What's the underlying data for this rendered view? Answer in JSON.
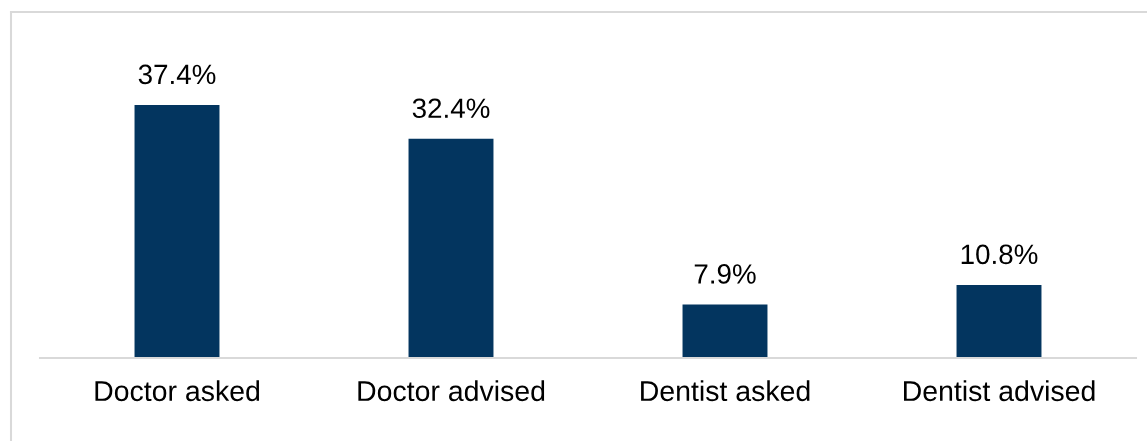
{
  "chart_data": {
    "type": "bar",
    "categories": [
      "Doctor asked",
      "Doctor advised",
      "Dentist asked",
      "Dentist advised"
    ],
    "values": [
      37.4,
      32.4,
      7.9,
      10.8
    ],
    "value_labels": [
      "37.4%",
      "32.4%",
      "7.9%",
      "10.8%"
    ],
    "color": "#03355f",
    "tick_labels": "x",
    "grid": false,
    "legend": false
  }
}
